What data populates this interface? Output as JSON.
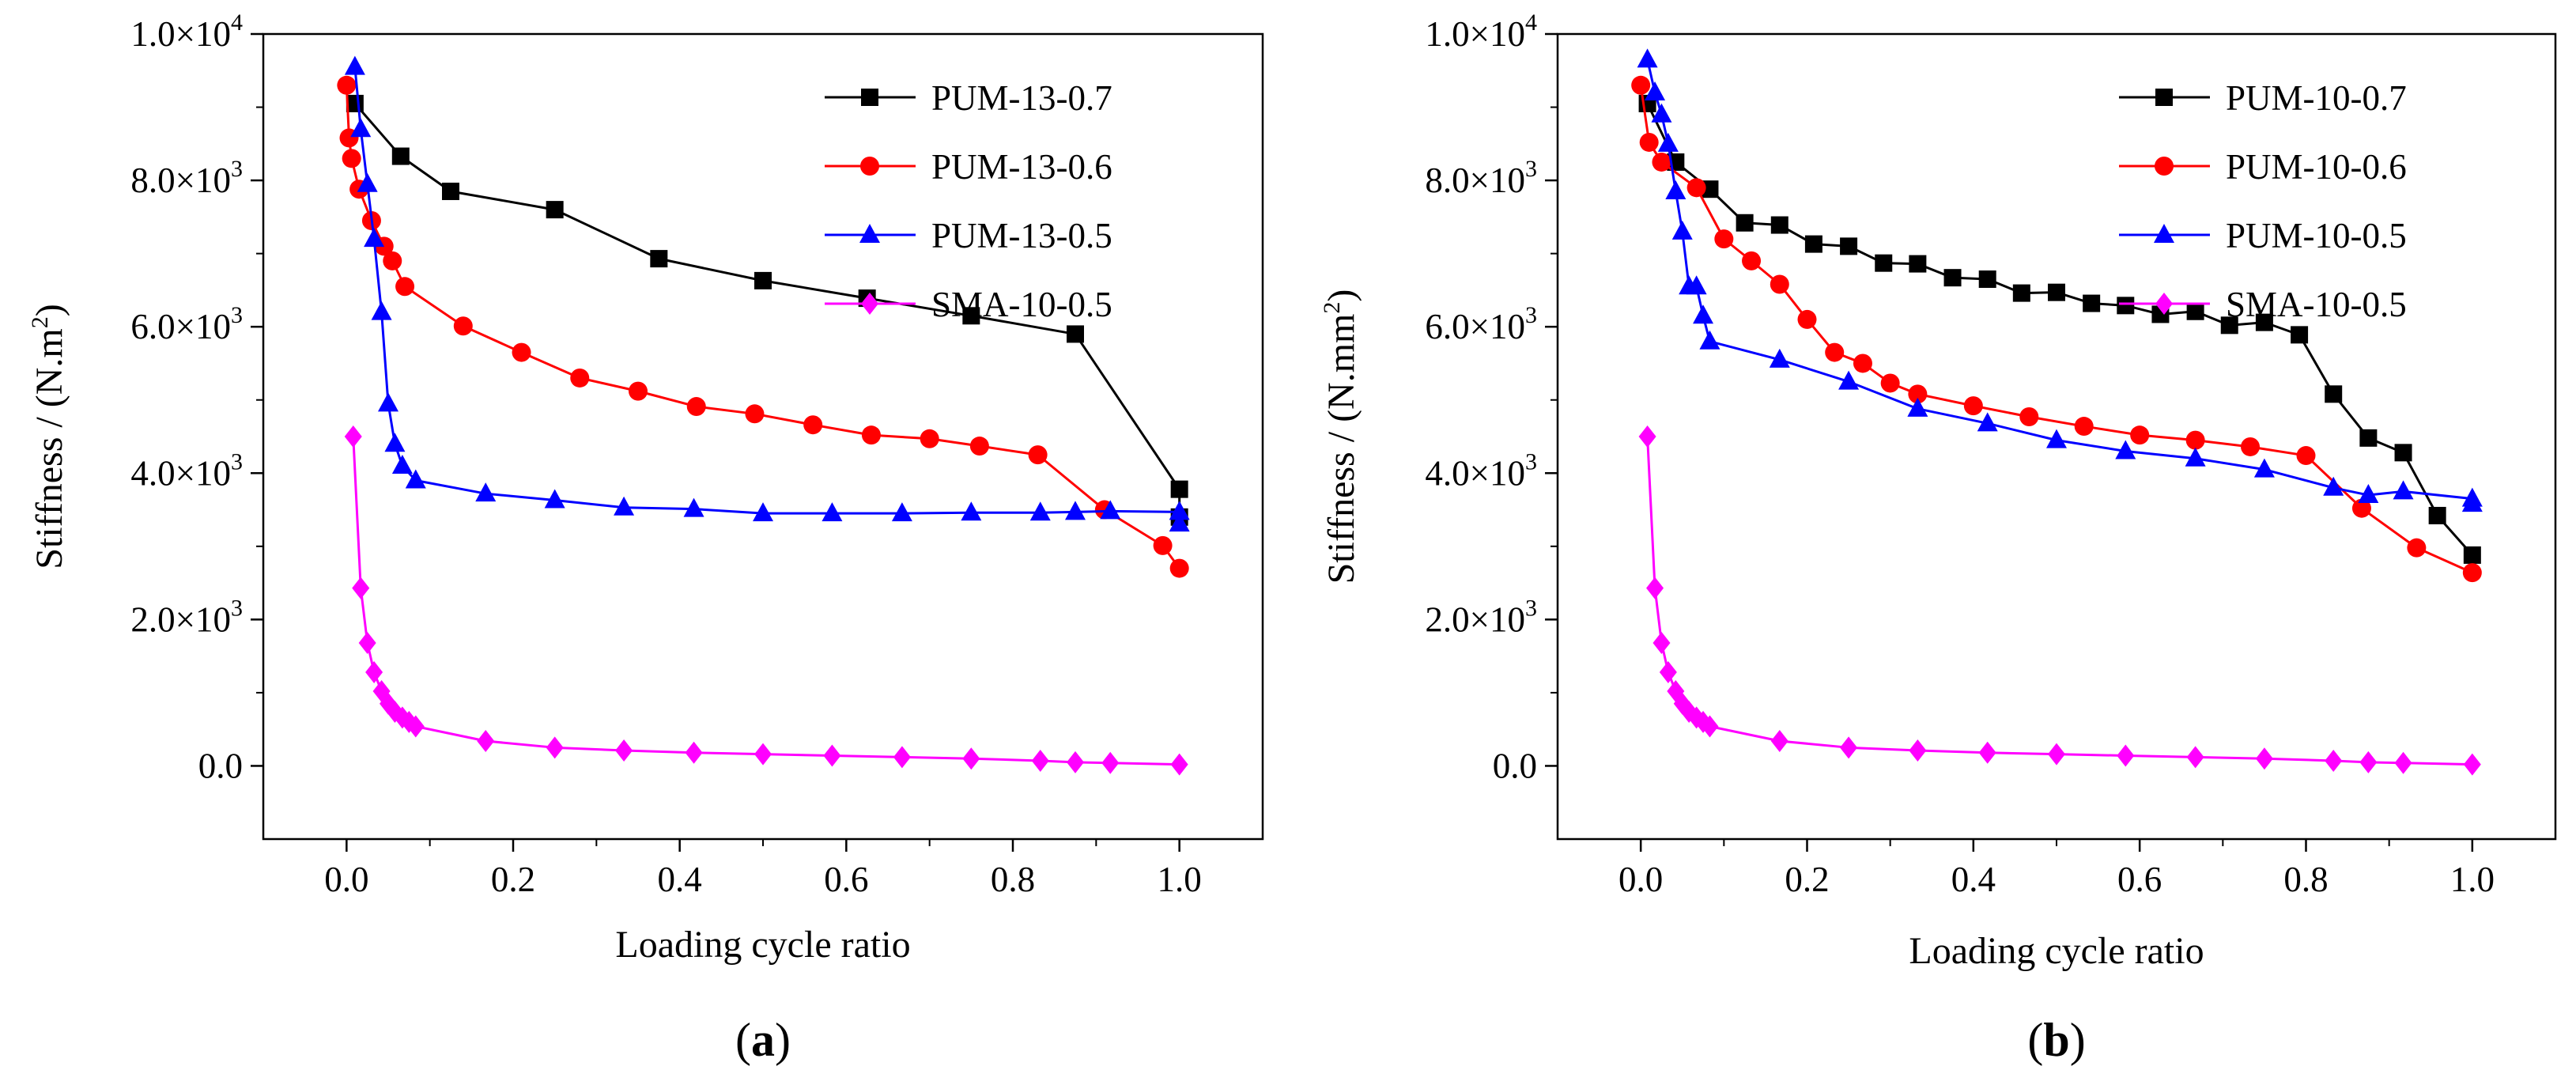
{
  "chart_data": [
    {
      "type": "line",
      "panel_label": "a",
      "xlabel": "Loading cycle ratio",
      "ylabel": "Stiffness / (N.m",
      "ylabel_sup": "2",
      "ylabel_end": ")",
      "xlim": [
        -0.1,
        1.1
      ],
      "ylim": [
        -1000,
        10000
      ],
      "xticks": [
        0.0,
        0.2,
        0.4,
        0.6,
        0.8,
        1.0
      ],
      "xtick_labels": [
        "0.0",
        "0.2",
        "0.4",
        "0.6",
        "0.8",
        "1.0"
      ],
      "yticks": [
        0,
        2000,
        4000,
        6000,
        8000,
        10000
      ],
      "ytick_labels": [
        {
          "mant": "0.0",
          "exp": ""
        },
        {
          "mant": "2.0×10",
          "exp": "3"
        },
        {
          "mant": "4.0×10",
          "exp": "3"
        },
        {
          "mant": "6.0×10",
          "exp": "3"
        },
        {
          "mant": "8.0×10",
          "exp": "3"
        },
        {
          "mant": "1.0×10",
          "exp": "4"
        }
      ],
      "grid": false,
      "legend_position": "top-right",
      "series": [
        {
          "name": "PUM-13-0.7",
          "color": "#000000",
          "marker": "square",
          "x": [
            0.01,
            0.065,
            0.125,
            0.25,
            0.375,
            0.5,
            0.625,
            0.75,
            0.875,
            1.0,
            1.0
          ],
          "y": [
            9050,
            8330,
            7850,
            7600,
            6930,
            6630,
            6390,
            6150,
            5900,
            3780,
            3400
          ]
        },
        {
          "name": "PUM-13-0.6",
          "color": "#ff0000",
          "marker": "circle",
          "x": [
            0.0,
            0.003,
            0.006,
            0.015,
            0.03,
            0.045,
            0.055,
            0.07,
            0.14,
            0.21,
            0.28,
            0.35,
            0.42,
            0.49,
            0.56,
            0.63,
            0.7,
            0.76,
            0.83,
            0.91,
            0.98,
            1.0
          ],
          "y": [
            9300,
            8580,
            8300,
            7880,
            7450,
            7100,
            6900,
            6550,
            6010,
            5650,
            5300,
            5120,
            4910,
            4810,
            4660,
            4520,
            4470,
            4370,
            4250,
            3500,
            3010,
            2700
          ]
        },
        {
          "name": "PUM-13-0.5",
          "color": "#0000ff",
          "marker": "triangle",
          "x": [
            0.01,
            0.017,
            0.025,
            0.033,
            0.042,
            0.05,
            0.058,
            0.067,
            0.083,
            0.167,
            0.25,
            0.333,
            0.417,
            0.5,
            0.583,
            0.667,
            0.75,
            0.833,
            0.875,
            0.917,
            1.0,
            1.0
          ],
          "y": [
            9550,
            8700,
            7950,
            7200,
            6200,
            4950,
            4400,
            4100,
            3900,
            3720,
            3630,
            3530,
            3510,
            3450,
            3450,
            3450,
            3460,
            3460,
            3470,
            3480,
            3470,
            3310
          ]
        },
        {
          "name": "SMA-10-0.5",
          "color": "#ff00ff",
          "marker": "diamond",
          "x": [
            0.008,
            0.017,
            0.025,
            0.033,
            0.042,
            0.05,
            0.058,
            0.067,
            0.075,
            0.083,
            0.167,
            0.25,
            0.333,
            0.417,
            0.5,
            0.583,
            0.667,
            0.75,
            0.833,
            0.875,
            0.917,
            1.0
          ],
          "y": [
            4500,
            2430,
            1680,
            1280,
            1020,
            850,
            740,
            660,
            600,
            540,
            340,
            250,
            210,
            180,
            160,
            140,
            120,
            100,
            70,
            50,
            40,
            20
          ]
        }
      ]
    },
    {
      "type": "line",
      "panel_label": "b",
      "xlabel": "Loading cycle ratio",
      "ylabel": "Stiffness / (N.mm",
      "ylabel_sup": "2",
      "ylabel_end": ")",
      "xlim": [
        -0.1,
        1.1
      ],
      "ylim": [
        -1000,
        10000
      ],
      "xticks": [
        0.0,
        0.2,
        0.4,
        0.6,
        0.8,
        1.0
      ],
      "xtick_labels": [
        "0.0",
        "0.2",
        "0.4",
        "0.6",
        "0.8",
        "1.0"
      ],
      "yticks": [
        0,
        2000,
        4000,
        6000,
        8000,
        10000
      ],
      "ytick_labels": [
        {
          "mant": "0.0",
          "exp": ""
        },
        {
          "mant": "2.0×10",
          "exp": "3"
        },
        {
          "mant": "4.0×10",
          "exp": "3"
        },
        {
          "mant": "6.0×10",
          "exp": "3"
        },
        {
          "mant": "8.0×10",
          "exp": "3"
        },
        {
          "mant": "1.0×10",
          "exp": "4"
        }
      ],
      "grid": false,
      "legend_position": "top-right",
      "series": [
        {
          "name": "PUM-10-0.7",
          "color": "#000000",
          "marker": "square",
          "x": [
            0.008,
            0.042,
            0.083,
            0.125,
            0.167,
            0.208,
            0.25,
            0.292,
            0.333,
            0.375,
            0.417,
            0.458,
            0.5,
            0.542,
            0.583,
            0.625,
            0.667,
            0.708,
            0.75,
            0.792,
            0.833,
            0.875,
            0.917,
            0.958,
            1.0
          ],
          "y": [
            9050,
            8250,
            7880,
            7420,
            7390,
            7130,
            7100,
            6870,
            6860,
            6670,
            6650,
            6460,
            6470,
            6320,
            6290,
            6170,
            6210,
            6020,
            6060,
            5890,
            5080,
            4480,
            4280,
            3420,
            2880
          ]
        },
        {
          "name": "PUM-10-0.6",
          "color": "#ff0000",
          "marker": "circle",
          "x": [
            0.0,
            0.01,
            0.025,
            0.067,
            0.1,
            0.133,
            0.167,
            0.2,
            0.233,
            0.267,
            0.3,
            0.333,
            0.4,
            0.467,
            0.533,
            0.6,
            0.667,
            0.733,
            0.8,
            0.867,
            0.933,
            1.0
          ],
          "y": [
            9300,
            8520,
            8250,
            7900,
            7200,
            6900,
            6580,
            6100,
            5650,
            5500,
            5230,
            5080,
            4920,
            4770,
            4640,
            4520,
            4450,
            4360,
            4240,
            3520,
            2980,
            2640
          ]
        },
        {
          "name": "PUM-10-0.5",
          "color": "#0000ff",
          "marker": "triangle",
          "x": [
            0.008,
            0.017,
            0.025,
            0.033,
            0.042,
            0.05,
            0.058,
            0.067,
            0.075,
            0.083,
            0.167,
            0.25,
            0.333,
            0.417,
            0.5,
            0.583,
            0.667,
            0.75,
            0.833,
            0.875,
            0.917,
            1.0,
            1.0
          ],
          "y": [
            9650,
            9200,
            8900,
            8500,
            7850,
            7300,
            6550,
            6550,
            6150,
            5800,
            5550,
            5250,
            4880,
            4680,
            4450,
            4300,
            4200,
            4050,
            3800,
            3700,
            3750,
            3650,
            3580
          ]
        },
        {
          "name": "SMA-10-0.5",
          "color": "#ff00ff",
          "marker": "diamond",
          "x": [
            0.008,
            0.017,
            0.025,
            0.033,
            0.042,
            0.05,
            0.058,
            0.067,
            0.075,
            0.083,
            0.167,
            0.25,
            0.333,
            0.417,
            0.5,
            0.583,
            0.667,
            0.75,
            0.833,
            0.875,
            0.917,
            1.0
          ],
          "y": [
            4500,
            2430,
            1680,
            1280,
            1020,
            850,
            740,
            660,
            600,
            540,
            340,
            250,
            210,
            180,
            160,
            140,
            120,
            100,
            70,
            50,
            40,
            20
          ]
        }
      ]
    }
  ]
}
